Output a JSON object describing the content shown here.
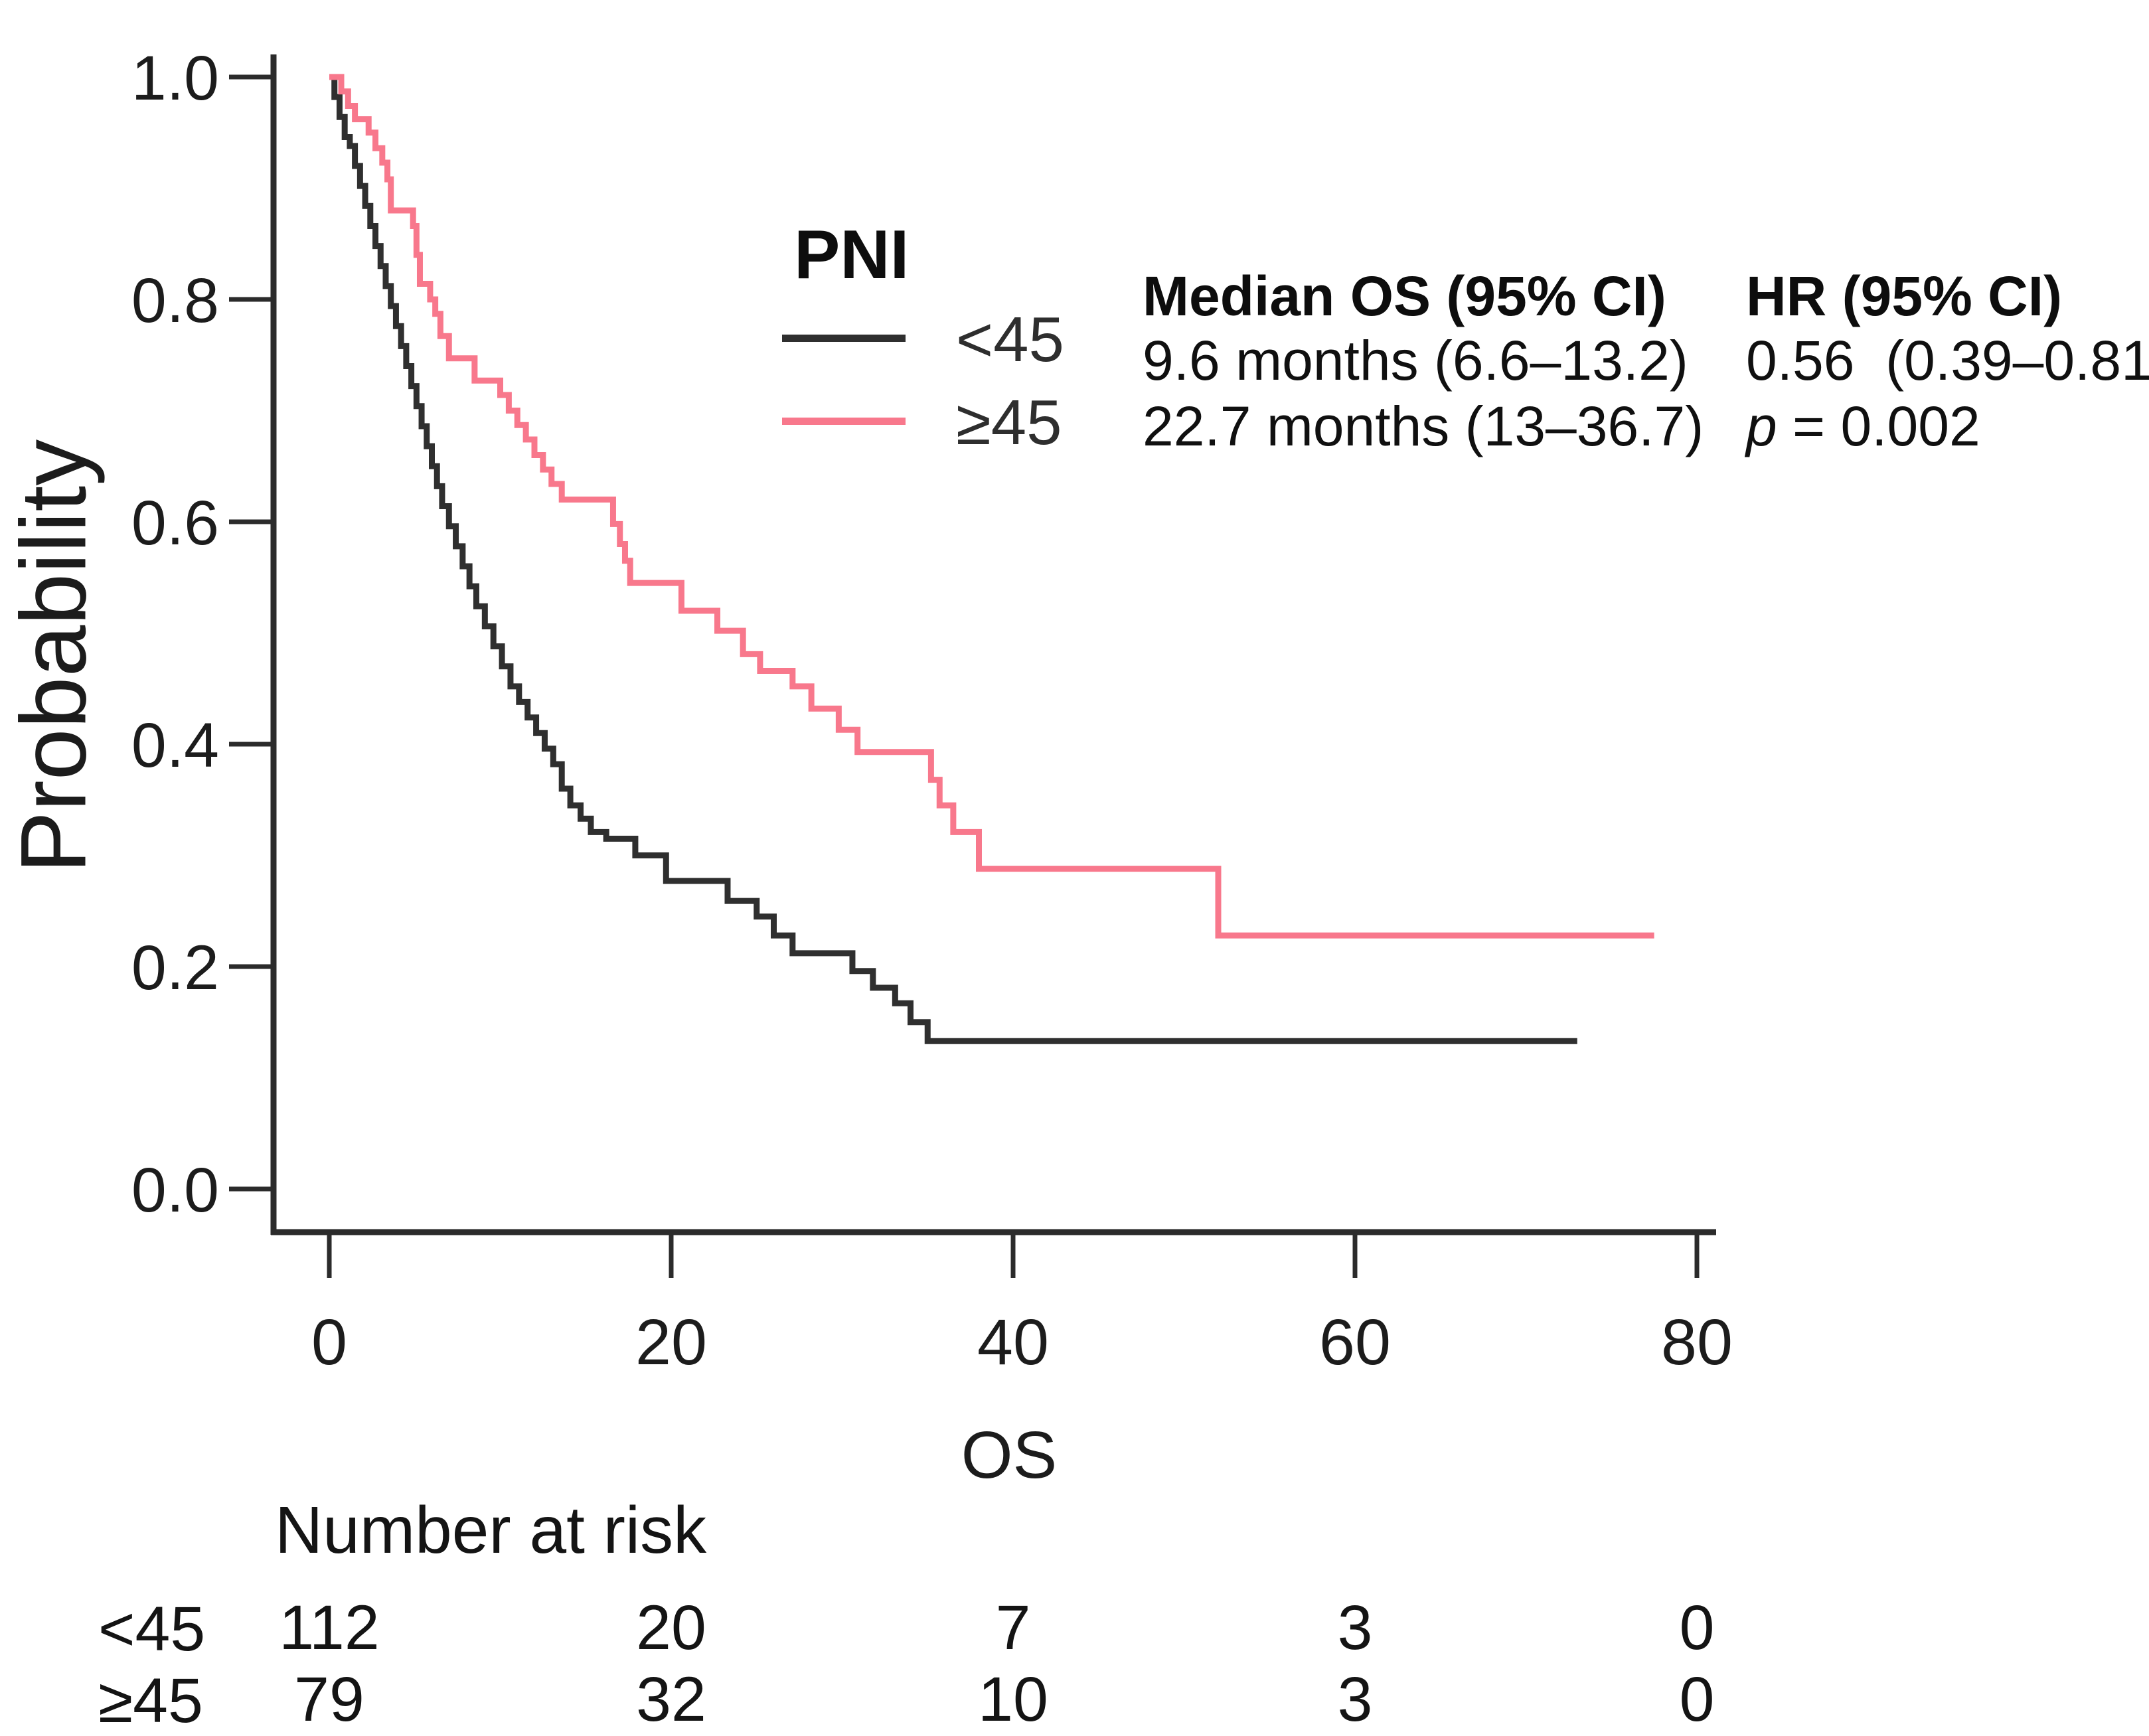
{
  "figure": {
    "background": "#ffffff",
    "text_color": "#111111"
  },
  "chart_data": {
    "type": "line",
    "subtype": "kaplan-meier-step",
    "title": "",
    "xlabel": "OS",
    "ylabel": "Probability",
    "xlim": [
      0,
      80
    ],
    "ylim": [
      0.0,
      1.0
    ],
    "grid": false,
    "legend_position": "top-center-inside",
    "xticks": {
      "values": [
        0,
        20,
        40,
        60,
        80
      ],
      "labels": [
        "0",
        "20",
        "40",
        "60",
        "80"
      ]
    },
    "yticks": {
      "values": [
        1.0,
        0.8,
        0.6,
        0.4,
        0.2,
        0.0
      ],
      "labels": [
        "1.0",
        "0.8",
        "0.6",
        "0.4",
        "0.2",
        "0.0"
      ]
    },
    "series": [
      {
        "name": "<45",
        "color": "#2f2f2f",
        "end_time": 73.0,
        "steps": [
          [
            0,
            1.0
          ],
          [
            0.3,
            0.982
          ],
          [
            0.6,
            0.964
          ],
          [
            0.9,
            0.946
          ],
          [
            1.2,
            0.938
          ],
          [
            1.5,
            0.92
          ],
          [
            1.8,
            0.902
          ],
          [
            2.1,
            0.884
          ],
          [
            2.4,
            0.866
          ],
          [
            2.7,
            0.848
          ],
          [
            3.0,
            0.83
          ],
          [
            3.3,
            0.812
          ],
          [
            3.6,
            0.794
          ],
          [
            3.9,
            0.776
          ],
          [
            4.2,
            0.758
          ],
          [
            4.5,
            0.74
          ],
          [
            4.8,
            0.722
          ],
          [
            5.1,
            0.704
          ],
          [
            5.4,
            0.686
          ],
          [
            5.7,
            0.668
          ],
          [
            6.0,
            0.65
          ],
          [
            6.3,
            0.632
          ],
          [
            6.6,
            0.614
          ],
          [
            7.0,
            0.596
          ],
          [
            7.4,
            0.578
          ],
          [
            7.8,
            0.56
          ],
          [
            8.2,
            0.542
          ],
          [
            8.6,
            0.524
          ],
          [
            9.1,
            0.506
          ],
          [
            9.6,
            0.488
          ],
          [
            10.1,
            0.47
          ],
          [
            10.6,
            0.452
          ],
          [
            11.1,
            0.438
          ],
          [
            11.6,
            0.424
          ],
          [
            12.1,
            0.41
          ],
          [
            12.6,
            0.396
          ],
          [
            13.1,
            0.382
          ],
          [
            13.6,
            0.36
          ],
          [
            14.1,
            0.345
          ],
          [
            14.7,
            0.333
          ],
          [
            15.3,
            0.321
          ],
          [
            16.2,
            0.315
          ],
          [
            17.9,
            0.3
          ],
          [
            19.7,
            0.277
          ],
          [
            23.3,
            0.259
          ],
          [
            25.0,
            0.245
          ],
          [
            26.0,
            0.228
          ],
          [
            27.1,
            0.212
          ],
          [
            30.6,
            0.196
          ],
          [
            31.8,
            0.181
          ],
          [
            33.1,
            0.167
          ],
          [
            34.0,
            0.15
          ],
          [
            35.0,
            0.133
          ]
        ]
      },
      {
        "name": "≥45",
        "color": "#f8788c",
        "end_time": 77.5,
        "steps": [
          [
            0,
            1.0
          ],
          [
            0.7,
            0.987
          ],
          [
            1.1,
            0.974
          ],
          [
            1.5,
            0.962
          ],
          [
            2.3,
            0.95
          ],
          [
            2.7,
            0.936
          ],
          [
            3.1,
            0.923
          ],
          [
            3.4,
            0.908
          ],
          [
            3.6,
            0.88
          ],
          [
            4.9,
            0.866
          ],
          [
            5.1,
            0.84
          ],
          [
            5.3,
            0.814
          ],
          [
            5.9,
            0.8
          ],
          [
            6.2,
            0.787
          ],
          [
            6.5,
            0.767
          ],
          [
            7.0,
            0.747
          ],
          [
            8.5,
            0.727
          ],
          [
            10.0,
            0.714
          ],
          [
            10.5,
            0.7
          ],
          [
            11.0,
            0.687
          ],
          [
            11.5,
            0.674
          ],
          [
            12.0,
            0.66
          ],
          [
            12.5,
            0.647
          ],
          [
            13.0,
            0.634
          ],
          [
            13.6,
            0.62
          ],
          [
            16.6,
            0.598
          ],
          [
            17.0,
            0.58
          ],
          [
            17.3,
            0.565
          ],
          [
            17.6,
            0.545
          ],
          [
            20.6,
            0.52
          ],
          [
            22.7,
            0.502
          ],
          [
            24.2,
            0.481
          ],
          [
            25.2,
            0.466
          ],
          [
            27.1,
            0.452
          ],
          [
            28.2,
            0.432
          ],
          [
            29.8,
            0.413
          ],
          [
            30.9,
            0.393
          ],
          [
            35.2,
            0.368
          ],
          [
            35.7,
            0.345
          ],
          [
            36.5,
            0.321
          ],
          [
            38.0,
            0.288
          ],
          [
            52.0,
            0.228
          ]
        ]
      }
    ]
  },
  "legend": {
    "title": "PNI",
    "entries": [
      {
        "label": "<45",
        "color": "#2f2f2f"
      },
      {
        "label": "≥45",
        "color": "#f8788c"
      }
    ]
  },
  "stats": {
    "median_header": "Median OS (95% CI)",
    "median_row1": "9.6 months (6.6–13.2)",
    "median_row2": "22.7 months (13–36.7)",
    "hr_header": "HR (95% CI)",
    "hr_value": "0.56  (0.39–0.81)",
    "p_label": "p",
    "p_value": " = 0.002"
  },
  "risk_table": {
    "header": "Number at risk",
    "times": [
      0,
      20,
      40,
      60,
      80
    ],
    "rows": [
      {
        "label": "<45",
        "counts": [
          "112",
          "20",
          "7",
          "3",
          "0"
        ]
      },
      {
        "label": "≥45",
        "counts": [
          "79",
          "32",
          "10",
          "3",
          "0"
        ]
      }
    ]
  }
}
